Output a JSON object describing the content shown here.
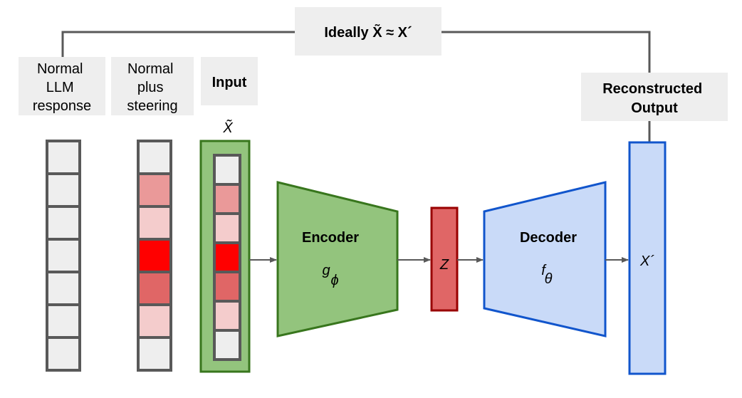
{
  "labels": {
    "ideally": "Ideally X̃ ≈ X´",
    "normal_llm": [
      "Normal",
      "LLM",
      "response"
    ],
    "normal_steering": [
      "Normal",
      "plus",
      "steering"
    ],
    "input": "Input",
    "reconstructed": [
      "Reconstructed",
      "Output"
    ],
    "x_tilde": "X̃",
    "encoder": "Encoder",
    "g": "g",
    "phi": "ϕ",
    "z": "Z",
    "decoder": "Decoder",
    "f": "f",
    "theta": "θ",
    "x_prime": "X´"
  },
  "cells": {
    "normal_llm": [
      "#eeeeee",
      "#eeeeee",
      "#eeeeee",
      "#eeeeee",
      "#eeeeee",
      "#eeeeee",
      "#eeeeee"
    ],
    "steering": [
      "#eeeeee",
      "#ea9999",
      "#f4cccc",
      "#ff0000",
      "#e06666",
      "#f4cccc",
      "#eeeeee"
    ],
    "input": [
      "#eeeeee",
      "#ea9999",
      "#f4cccc",
      "#ff0000",
      "#e06666",
      "#f4cccc",
      "#eeeeee"
    ]
  },
  "colors": {
    "cell_border": "#595959",
    "label_box": "#eeeeee",
    "encoder_fill": "#93c47d",
    "encoder_stroke": "#38761d",
    "encoder_text": "#38761d",
    "z_fill": "#e06666",
    "z_stroke": "#990000",
    "decoder_fill": "#c9daf8",
    "decoder_stroke": "#1155cc",
    "decoder_text": "#1155cc",
    "connector": "#595959"
  }
}
